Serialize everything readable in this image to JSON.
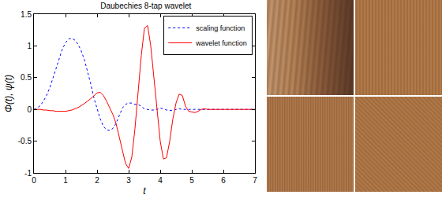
{
  "chart_data": {
    "type": "line",
    "title": "Daubechies 8-tap wavelet",
    "x_label": "t",
    "y_label": "Φ(t), ψ(t)",
    "x": [
      0,
      0.1,
      0.2,
      0.3,
      0.4,
      0.5,
      0.6,
      0.7,
      0.8,
      0.9,
      1,
      1.1,
      1.2,
      1.3,
      1.4,
      1.5,
      1.6,
      1.7,
      1.8,
      1.9,
      2,
      2.1,
      2.2,
      2.3,
      2.4,
      2.5,
      2.6,
      2.7,
      2.8,
      2.9,
      3,
      3.1,
      3.2,
      3.3,
      3.4,
      3.5,
      3.6,
      3.7,
      3.8,
      3.9,
      4,
      4.1,
      4.2,
      4.3,
      4.4,
      4.5,
      4.6,
      4.7,
      4.8,
      4.9,
      5,
      5.1,
      5.2,
      5.3,
      5.4,
      5.5,
      5.6,
      5.7,
      5.8,
      5.9,
      6,
      6.1,
      6.2,
      6.3,
      6.4,
      6.5,
      6.6,
      6.7,
      6.8,
      6.9,
      7
    ],
    "series": [
      {
        "name": "scaling function",
        "color": "#0000ff",
        "line_style": "dotted",
        "values": [
          0,
          0.02,
          0.06,
          0.13,
          0.22,
          0.34,
          0.49,
          0.65,
          0.81,
          0.95,
          1.05,
          1.11,
          1.12,
          1.09,
          1.02,
          0.92,
          0.78,
          0.6,
          0.4,
          0.18,
          0,
          -0.15,
          -0.27,
          -0.32,
          -0.33,
          -0.3,
          -0.22,
          -0.1,
          0.02,
          0.08,
          0.1,
          0.1,
          0.08,
          0.08,
          0.05,
          0.01,
          0,
          -0.01,
          -0.01,
          0,
          0.02,
          0.01,
          -0.01,
          -0.02,
          -0.01,
          0,
          0.01,
          0,
          0,
          0,
          0,
          0,
          0,
          0,
          0,
          0,
          0,
          0,
          0,
          0,
          0,
          0,
          0,
          0,
          0,
          0,
          0,
          0,
          0,
          0,
          0
        ]
      },
      {
        "name": "wavelet function",
        "color": "#ff0000",
        "line_style": "solid",
        "values": [
          0,
          0,
          0,
          -0.01,
          -0.01,
          -0.02,
          -0.02,
          -0.03,
          -0.03,
          -0.03,
          -0.03,
          -0.02,
          -0.01,
          0.01,
          0.03,
          0.06,
          0.09,
          0.13,
          0.17,
          0.22,
          0.26,
          0.27,
          0.22,
          0.13,
          0.03,
          -0.08,
          -0.22,
          -0.42,
          -0.65,
          -0.85,
          -0.93,
          -0.75,
          -0.3,
          0.3,
          0.85,
          1.28,
          1.32,
          1,
          0.5,
          0,
          -0.5,
          -0.78,
          -0.76,
          -0.5,
          -0.15,
          0.1,
          0.24,
          0.22,
          0.05,
          -0.03,
          -0.04,
          -0.05,
          -0.03,
          0,
          0.01,
          0,
          0,
          0,
          0,
          0,
          0,
          0,
          0,
          0,
          0,
          0,
          0,
          0,
          0,
          0,
          0
        ]
      }
    ],
    "xlim": [
      0,
      7
    ],
    "xticks": [
      0,
      1,
      2,
      3,
      4,
      5,
      6,
      7
    ],
    "ylim": [
      -1,
      1.5
    ],
    "yticks": [
      -1,
      -0.5,
      0,
      0.5,
      1,
      1.5
    ],
    "grid": false,
    "legend": "upper right"
  }
}
